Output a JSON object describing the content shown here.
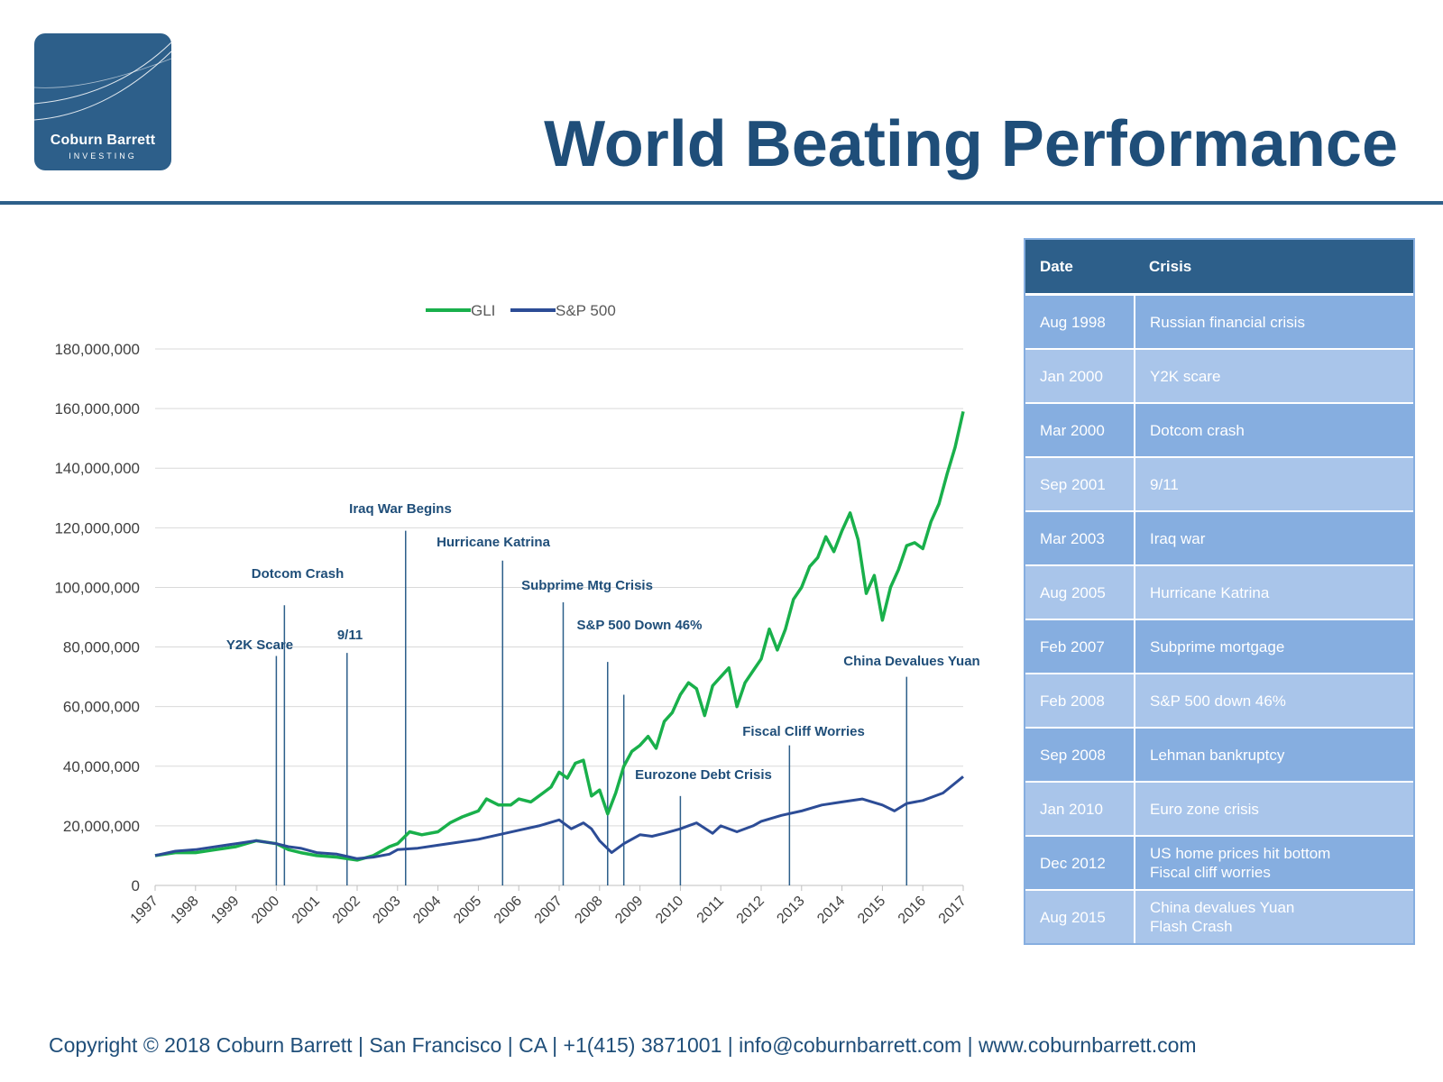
{
  "brand": {
    "name": "Coburn Barrett",
    "sub": "INVESTING"
  },
  "page_title": "World Beating Performance",
  "chart_data": {
    "type": "line",
    "title": "",
    "xlabel": "",
    "ylabel": "",
    "x_ticks": [
      "1997",
      "1998",
      "1999",
      "2000",
      "2001",
      "2002",
      "2003",
      "2004",
      "2005",
      "2006",
      "2007",
      "2008",
      "2009",
      "2010",
      "2011",
      "2012",
      "2013",
      "2014",
      "2015",
      "2016",
      "2017"
    ],
    "xlim": [
      1997,
      2017
    ],
    "ylim": [
      0,
      180000000
    ],
    "y_ticks": [
      0,
      20000000,
      40000000,
      60000000,
      80000000,
      100000000,
      120000000,
      140000000,
      160000000,
      180000000
    ],
    "y_tick_labels": [
      "0",
      "20,000,000",
      "40,000,000",
      "60,000,000",
      "80,000,000",
      "100,000,000",
      "120,000,000",
      "140,000,000",
      "160,000,000",
      "180,000,000"
    ],
    "grid": "horizontal",
    "legend_position": "top",
    "series": [
      {
        "name": "GLI",
        "color": "#19b04b",
        "x": [
          1997,
          1997.5,
          1998,
          1998.5,
          1999,
          1999.5,
          2000,
          2000.3,
          2000.6,
          2001,
          2001.5,
          2002,
          2002.4,
          2002.8,
          2003,
          2003.3,
          2003.6,
          2004,
          2004.3,
          2004.6,
          2004.8,
          2005,
          2005.2,
          2005.5,
          2005.8,
          2006,
          2006.3,
          2006.6,
          2006.8,
          2007,
          2007.2,
          2007.4,
          2007.6,
          2007.8,
          2008,
          2008.2,
          2008.4,
          2008.6,
          2008.8,
          2009,
          2009.2,
          2009.4,
          2009.6,
          2009.8,
          2010,
          2010.2,
          2010.4,
          2010.6,
          2010.8,
          2011,
          2011.2,
          2011.4,
          2011.6,
          2011.8,
          2012,
          2012.2,
          2012.4,
          2012.6,
          2012.8,
          2013,
          2013.2,
          2013.4,
          2013.6,
          2013.8,
          2014,
          2014.2,
          2014.4,
          2014.6,
          2014.8,
          2015,
          2015.2,
          2015.4,
          2015.6,
          2015.8,
          2016,
          2016.2,
          2016.4,
          2016.6,
          2016.8,
          2017
        ],
        "y": [
          10000000,
          11000000,
          11000000,
          12000000,
          13000000,
          15000000,
          14000000,
          12000000,
          11000000,
          10000000,
          9500000,
          8500000,
          10000000,
          13000000,
          14000000,
          18000000,
          17000000,
          18000000,
          21000000,
          23000000,
          24000000,
          25000000,
          29000000,
          27000000,
          27000000,
          29000000,
          28000000,
          31000000,
          33000000,
          38000000,
          36000000,
          41000000,
          42000000,
          30000000,
          32000000,
          24000000,
          31000000,
          40000000,
          45000000,
          47000000,
          50000000,
          46000000,
          55000000,
          58000000,
          64000000,
          68000000,
          66000000,
          57000000,
          67000000,
          70000000,
          73000000,
          60000000,
          68000000,
          72000000,
          76000000,
          86000000,
          79000000,
          86000000,
          96000000,
          100000000,
          107000000,
          110000000,
          117000000,
          112000000,
          119000000,
          125000000,
          116000000,
          98000000,
          104000000,
          89000000,
          100000000,
          106000000,
          114000000,
          115000000,
          113000000,
          122000000,
          128000000,
          138000000,
          147000000,
          159000000
        ]
      },
      {
        "name": "S&P 500",
        "color": "#2c4c96",
        "x": [
          1997,
          1997.5,
          1998,
          1998.5,
          1999,
          1999.5,
          2000,
          2000.3,
          2000.6,
          2001,
          2001.5,
          2002,
          2002.4,
          2002.8,
          2003,
          2003.5,
          2004,
          2004.5,
          2005,
          2005.5,
          2006,
          2006.5,
          2007,
          2007.3,
          2007.6,
          2007.8,
          2008,
          2008.3,
          2008.6,
          2009,
          2009.3,
          2009.6,
          2010,
          2010.4,
          2010.8,
          2011,
          2011.4,
          2011.8,
          2012,
          2012.5,
          2013,
          2013.5,
          2014,
          2014.5,
          2015,
          2015.3,
          2015.6,
          2016,
          2016.5,
          2017
        ],
        "y": [
          10000000,
          11500000,
          12000000,
          13000000,
          14000000,
          15000000,
          14000000,
          13000000,
          12500000,
          11000000,
          10500000,
          9000000,
          9500000,
          10500000,
          12000000,
          12500000,
          13500000,
          14500000,
          15500000,
          17000000,
          18500000,
          20000000,
          22000000,
          19000000,
          21000000,
          19000000,
          15000000,
          11000000,
          14000000,
          17000000,
          16500000,
          17500000,
          19000000,
          21000000,
          17500000,
          20000000,
          18000000,
          20000000,
          21500000,
          23500000,
          25000000,
          27000000,
          28000000,
          29000000,
          27000000,
          25000000,
          27500000,
          28500000,
          31000000,
          36500000
        ]
      }
    ],
    "annotations": [
      {
        "label": "Y2K Scare",
        "x": 2000.0,
        "top": 77000000
      },
      {
        "label": "Dotcom Crash",
        "x": 2000.2,
        "top": 94000000
      },
      {
        "label": "9/11",
        "x": 2001.75,
        "top": 78000000
      },
      {
        "label": "Iraq War Begins",
        "x": 2003.2,
        "top": 119000000
      },
      {
        "label": "Hurricane Katrina",
        "x": 2005.6,
        "top": 109000000
      },
      {
        "label": "Subprime Mtg Crisis",
        "x": 2007.1,
        "top": 95000000
      },
      {
        "label": "S&P 500 Down 46%",
        "x": 2008.2,
        "top": 75000000
      },
      {
        "label": "Eurozone Debt Crisis",
        "x": 2008.6,
        "top": 64000000
      },
      {
        "label": "Fiscal Cliff Worries",
        "x": 2012.7,
        "top": 47000000
      },
      {
        "label": "China Devalues Yuan",
        "x": 2015.6,
        "top": 70000000
      },
      {
        "label": "",
        "x": 2010.0,
        "top": 30000000
      }
    ]
  },
  "table": {
    "headers": [
      "Date",
      "Crisis"
    ],
    "rows": [
      [
        "Aug 1998",
        "Russian financial crisis"
      ],
      [
        "Jan 2000",
        "Y2K scare"
      ],
      [
        "Mar 2000",
        "Dotcom crash"
      ],
      [
        "Sep 2001",
        "9/11"
      ],
      [
        "Mar 2003",
        "Iraq war"
      ],
      [
        "Aug 2005",
        "Hurricane Katrina"
      ],
      [
        "Feb 2007",
        "Subprime mortgage"
      ],
      [
        "Feb 2008",
        "S&P 500 down 46%"
      ],
      [
        "Sep 2008",
        "Lehman bankruptcy"
      ],
      [
        "Jan 2010",
        "Euro zone crisis"
      ],
      [
        "Dec 2012",
        "US home prices hit bottom\nFiscal cliff worries"
      ],
      [
        "Aug 2015",
        "China devalues Yuan\nFlash Crash"
      ]
    ]
  },
  "footer": "Copyright © 2018 Coburn Barrett  |  San Francisco  |  CA  |  +1(415) 3871001  |  info@coburnbarrett.com  |  www.coburnbarrett.com"
}
